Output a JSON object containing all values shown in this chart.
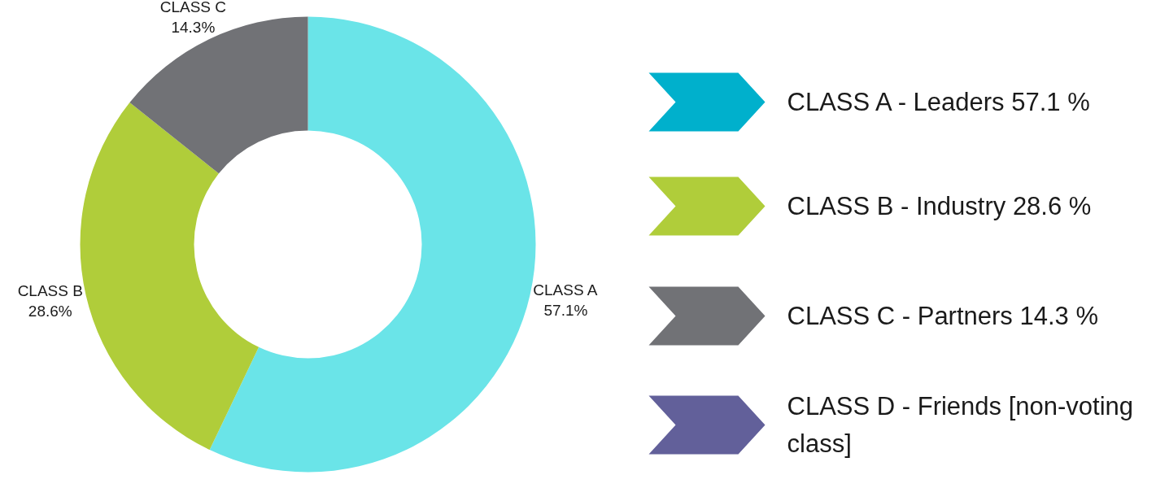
{
  "chart_data": [
    {
      "type": "donut",
      "categories": [
        "CLASS A",
        "CLASS B",
        "CLASS C"
      ],
      "values": [
        57.1,
        28.6,
        14.3
      ],
      "value_labels": [
        "57.1%",
        "28.6%",
        "14.3%"
      ],
      "colors": [
        "#6ae4e8",
        "#b0cd3a",
        "#717276"
      ]
    },
    {
      "type": "other",
      "categories": [
        "CLASS A - Leaders 57.1 %",
        "CLASS B - Industry 28.6 %",
        "CLASS C - Partners 14.3 %",
        "CLASS D - Friends [non-voting class]"
      ],
      "colors": [
        "#00b0cc",
        "#b0cd3a",
        "#717276",
        "#62609a"
      ]
    }
  ]
}
